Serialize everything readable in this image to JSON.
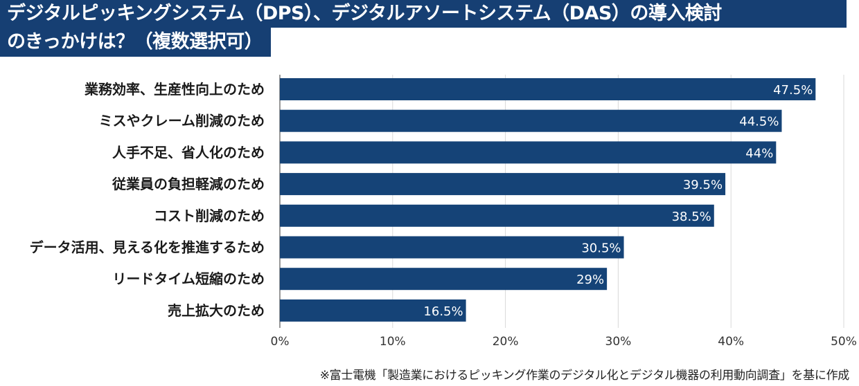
{
  "title_lines": [
    "デジタルピッキングシステム（DPS）、デジタルアソートシステム（DAS）の導入検討",
    "のきっかけは？（複数選択可）"
  ],
  "footnote": "※富士電機「製造業におけるピッキング作業のデジタル化とデジタル機器の利用動向調査」を基に作成",
  "colors": {
    "bar": "#154377",
    "title_bg": "#163f73",
    "grid": "#d9d9d9",
    "axis": "#555555"
  },
  "chart_data": {
    "type": "bar",
    "orientation": "horizontal",
    "categories": [
      "業務効率、生産性向上のため",
      "ミスやクレーム削減のため",
      "人手不足、省人化のため",
      "従業員の負担軽減のため",
      "コスト削減のため",
      "データ活用、見える化を推進するため",
      "リードタイム短縮のため",
      "売上拡大のため"
    ],
    "values": [
      47.5,
      44.5,
      44,
      39.5,
      38.5,
      30.5,
      29,
      16.5
    ],
    "data_labels": [
      "47.5%",
      "44.5%",
      "44%",
      "39.5%",
      "38.5%",
      "30.5%",
      "29%",
      "16.5%"
    ],
    "xlim": [
      0,
      50
    ],
    "xticks": [
      0,
      10,
      20,
      30,
      40,
      50
    ],
    "xtick_labels": [
      "0%",
      "10%",
      "20%",
      "30%",
      "40%",
      "50%"
    ],
    "grid": true,
    "legend": false
  }
}
